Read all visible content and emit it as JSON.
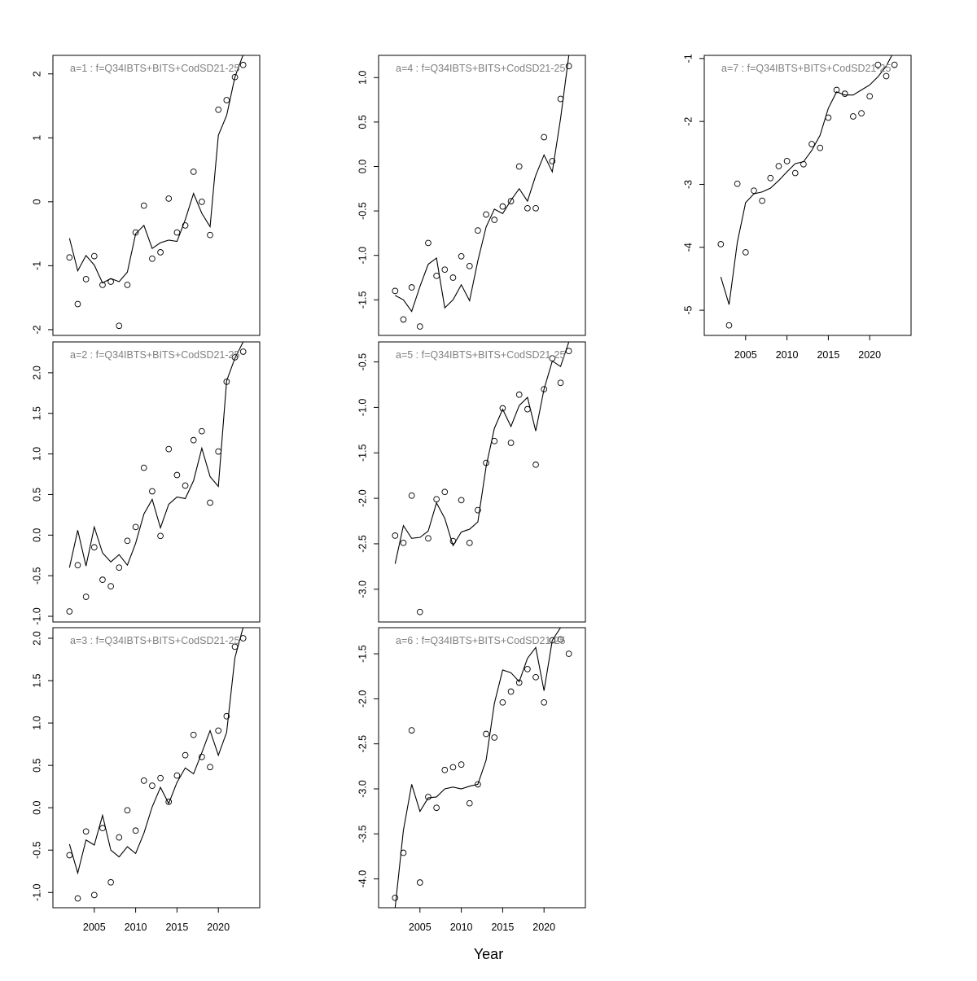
{
  "xlabel": "Year",
  "chart_data": [
    {
      "type": "scatter",
      "title": "a=1  :  f=Q34IBTS+BITS+CodSD21-25",
      "x": [
        2002,
        2003,
        2004,
        2005,
        2006,
        2007,
        2008,
        2009,
        2010,
        2011,
        2012,
        2013,
        2014,
        2015,
        2016,
        2017,
        2018,
        2019,
        2020,
        2021,
        2022,
        2023
      ],
      "series": [
        {
          "style": "points",
          "color": "#000000",
          "values": [
            -0.87,
            -1.6,
            -1.21,
            -0.85,
            -1.3,
            -1.25,
            -1.94,
            -1.3,
            -0.48,
            -0.06,
            -0.89,
            -0.79,
            0.05,
            -0.48,
            -0.37,
            0.47,
            0.0,
            -0.52,
            1.44,
            1.59,
            1.95,
            2.14
          ]
        },
        {
          "style": "line",
          "color": "#000000",
          "values": [
            -0.57,
            -1.08,
            -0.84,
            -0.99,
            -1.27,
            -1.2,
            -1.25,
            -1.1,
            -0.5,
            -0.37,
            -0.73,
            -0.64,
            -0.6,
            -0.62,
            -0.28,
            0.13,
            -0.18,
            -0.39,
            1.04,
            1.35,
            1.95,
            2.3
          ]
        }
      ],
      "xlim": [
        2000,
        2025
      ],
      "ylim": [
        -2.09,
        2.29
      ],
      "yticks": [
        -2,
        -1,
        0,
        1,
        2
      ]
    },
    {
      "type": "scatter",
      "title": "a=2  :  f=Q34IBTS+BITS+CodSD21-25",
      "x": [
        2002,
        2003,
        2004,
        2005,
        2006,
        2007,
        2008,
        2009,
        2010,
        2011,
        2012,
        2013,
        2014,
        2015,
        2016,
        2017,
        2018,
        2019,
        2020,
        2021,
        2022,
        2023
      ],
      "series": [
        {
          "style": "points",
          "color": "#000000",
          "values": [
            -0.94,
            -0.37,
            -0.76,
            -0.15,
            -0.55,
            -0.63,
            -0.4,
            -0.07,
            0.1,
            0.83,
            0.54,
            -0.01,
            1.06,
            0.74,
            0.61,
            1.17,
            1.28,
            0.4,
            1.03,
            1.89,
            2.19,
            2.26
          ]
        },
        {
          "style": "line",
          "color": "#000000",
          "values": [
            -0.4,
            0.06,
            -0.38,
            0.1,
            -0.22,
            -0.33,
            -0.24,
            -0.37,
            -0.1,
            0.26,
            0.44,
            0.09,
            0.38,
            0.47,
            0.45,
            0.67,
            1.07,
            0.72,
            0.6,
            1.9,
            2.18,
            2.38
          ]
        }
      ],
      "xlim": [
        2000,
        2025
      ],
      "ylim": [
        -1.07,
        2.38
      ],
      "yticks": [
        {
          "value": -1,
          "label": "-1.0"
        },
        -0.5,
        {
          "value": 0,
          "label": "0.0"
        },
        0.5,
        {
          "value": 1,
          "label": "1.0"
        },
        1.5,
        {
          "value": 2,
          "label": "2.0"
        }
      ]
    },
    {
      "type": "scatter",
      "title": "a=3  :  f=Q34IBTS+BITS+CodSD21-25",
      "x": [
        2002,
        2003,
        2004,
        2005,
        2006,
        2007,
        2008,
        2009,
        2010,
        2011,
        2012,
        2013,
        2014,
        2015,
        2016,
        2017,
        2018,
        2019,
        2020,
        2021,
        2022,
        2023
      ],
      "series": [
        {
          "style": "points",
          "color": "#000000",
          "values": [
            -0.56,
            -1.07,
            -0.28,
            -1.03,
            -0.24,
            -0.88,
            -0.35,
            -0.03,
            -0.27,
            0.32,
            0.26,
            0.35,
            0.07,
            0.38,
            0.62,
            0.86,
            0.6,
            0.48,
            0.91,
            1.08,
            1.9,
            2.0
          ]
        },
        {
          "style": "line",
          "color": "#000000",
          "values": [
            -0.43,
            -0.77,
            -0.38,
            -0.44,
            -0.09,
            -0.5,
            -0.58,
            -0.46,
            -0.54,
            -0.3,
            0.01,
            0.24,
            0.05,
            0.3,
            0.47,
            0.4,
            0.65,
            0.91,
            0.62,
            0.89,
            1.77,
            2.13
          ]
        }
      ],
      "xlim": [
        2000,
        2025
      ],
      "ylim": [
        -1.18,
        2.125
      ],
      "yticks": [
        {
          "value": -1,
          "label": "-1.0"
        },
        -0.5,
        {
          "value": 0,
          "label": "0.0"
        },
        0.5,
        {
          "value": 1,
          "label": "1.0"
        },
        1.5,
        {
          "value": 2,
          "label": "2.0"
        }
      ],
      "xticks": [
        2005,
        2010,
        2015,
        2020
      ]
    },
    {
      "type": "scatter",
      "title": "a=4  :  f=Q34IBTS+BITS+CodSD21-25",
      "x": [
        2002,
        2003,
        2004,
        2005,
        2006,
        2007,
        2008,
        2009,
        2010,
        2011,
        2012,
        2013,
        2014,
        2015,
        2016,
        2017,
        2018,
        2019,
        2020,
        2021,
        2022,
        2023
      ],
      "series": [
        {
          "style": "points",
          "color": "#000000",
          "values": [
            -1.4,
            -1.72,
            -1.36,
            -1.8,
            -0.86,
            -1.23,
            -1.16,
            -1.25,
            -1.01,
            -1.12,
            -0.72,
            -0.54,
            -0.6,
            -0.45,
            -0.39,
            0.0,
            -0.47,
            -0.47,
            0.33,
            0.06,
            0.76,
            1.13
          ]
        },
        {
          "style": "line",
          "color": "#000000",
          "values": [
            -1.45,
            -1.5,
            -1.63,
            -1.35,
            -1.1,
            -1.03,
            -1.59,
            -1.5,
            -1.33,
            -1.51,
            -1.06,
            -0.68,
            -0.48,
            -0.53,
            -0.38,
            -0.25,
            -0.39,
            -0.1,
            0.13,
            -0.06,
            0.54,
            1.25
          ]
        }
      ],
      "xlim": [
        2000,
        2025
      ],
      "ylim": [
        -1.9,
        1.25
      ],
      "yticks": [
        -1.5,
        {
          "value": -1,
          "label": "-1.0"
        },
        -0.5,
        {
          "value": 0,
          "label": "0.0"
        },
        0.5,
        {
          "value": 1,
          "label": "1.0"
        }
      ]
    },
    {
      "type": "scatter",
      "title": "a=5  :  f=Q34IBTS+BITS+CodSD21-25",
      "x": [
        2002,
        2003,
        2004,
        2005,
        2006,
        2007,
        2008,
        2009,
        2010,
        2011,
        2012,
        2013,
        2014,
        2015,
        2016,
        2017,
        2018,
        2019,
        2020,
        2021,
        2022,
        2023
      ],
      "series": [
        {
          "style": "points",
          "color": "#000000",
          "values": [
            -2.41,
            -2.49,
            -1.97,
            -3.25,
            -2.44,
            -2.01,
            -1.93,
            -2.47,
            -2.02,
            -2.49,
            -2.13,
            -1.61,
            -1.37,
            -1.01,
            -1.39,
            -0.86,
            -1.02,
            -1.63,
            -0.8,
            -0.46,
            -0.73,
            -0.38
          ]
        },
        {
          "style": "line",
          "color": "#000000",
          "values": [
            -2.72,
            -2.3,
            -2.44,
            -2.43,
            -2.36,
            -2.05,
            -2.22,
            -2.52,
            -2.37,
            -2.34,
            -2.26,
            -1.65,
            -1.23,
            -1.02,
            -1.21,
            -0.98,
            -0.89,
            -1.26,
            -0.8,
            -0.49,
            -0.55,
            -0.28
          ]
        }
      ],
      "xlim": [
        2000,
        2025
      ],
      "ylim": [
        -3.36,
        -0.28
      ],
      "yticks": [
        {
          "value": -3,
          "label": "-3.0"
        },
        -2.5,
        {
          "value": -2,
          "label": "-2.0"
        },
        -1.5,
        {
          "value": -1,
          "label": "-1.0"
        },
        -0.5
      ]
    },
    {
      "type": "scatter",
      "title": "a=6  :  f=Q34IBTS+BITS+CodSD21-25",
      "x": [
        2002,
        2003,
        2004,
        2005,
        2006,
        2007,
        2008,
        2009,
        2010,
        2011,
        2012,
        2013,
        2014,
        2015,
        2016,
        2017,
        2018,
        2019,
        2020,
        2021,
        2022,
        2023
      ],
      "series": [
        {
          "style": "points",
          "color": "#000000",
          "values": [
            -4.21,
            -3.71,
            -2.35,
            -4.04,
            -3.09,
            -3.21,
            -2.79,
            -2.76,
            -2.73,
            -3.16,
            -2.95,
            -2.39,
            -2.43,
            -2.04,
            -1.92,
            -1.82,
            -1.67,
            -1.76,
            -2.04,
            -1.35,
            -1.34,
            -1.5
          ]
        },
        {
          "style": "line",
          "color": "#000000",
          "values": [
            -4.32,
            -3.46,
            -2.95,
            -3.25,
            -3.1,
            -3.09,
            -3.0,
            -2.98,
            -3.0,
            -2.97,
            -2.95,
            -2.68,
            -2.05,
            -1.68,
            -1.71,
            -1.81,
            -1.55,
            -1.43,
            -1.91,
            -1.35,
            -1.21,
            -1.15
          ]
        }
      ],
      "xlim": [
        2000,
        2025
      ],
      "ylim": [
        -4.32,
        -1.21
      ],
      "yticks": [
        {
          "value": -4,
          "label": "-4.0"
        },
        -3.5,
        {
          "value": -3,
          "label": "-3.0"
        },
        -2.5,
        {
          "value": -2,
          "label": "-2.0"
        },
        -1.5
      ],
      "xticks": [
        2005,
        2010,
        2015,
        2020
      ]
    },
    {
      "type": "scatter",
      "title": "a=7  :  f=Q34IBTS+BITS+CodSD21-25",
      "x": [
        2002,
        2003,
        2004,
        2005,
        2006,
        2007,
        2008,
        2009,
        2010,
        2011,
        2012,
        2013,
        2014,
        2015,
        2016,
        2017,
        2018,
        2019,
        2020,
        2021,
        2022,
        2023
      ],
      "series": [
        {
          "style": "points",
          "color": "#000000",
          "values": [
            -3.95,
            -5.24,
            -2.99,
            -4.08,
            -3.1,
            -3.26,
            -2.9,
            -2.71,
            -2.63,
            -2.82,
            -2.68,
            -2.36,
            -2.42,
            -1.94,
            -1.5,
            -1.56,
            -1.92,
            -1.87,
            -1.6,
            -1.1,
            -1.28,
            -1.1
          ]
        },
        {
          "style": "line",
          "color": "#000000",
          "values": [
            -4.47,
            -4.91,
            -3.92,
            -3.29,
            -3.15,
            -3.12,
            -3.06,
            -2.94,
            -2.8,
            -2.67,
            -2.64,
            -2.46,
            -2.22,
            -1.79,
            -1.53,
            -1.58,
            -1.58,
            -1.5,
            -1.42,
            -1.29,
            -1.12,
            -0.87
          ]
        }
      ],
      "xlim": [
        2000,
        2025
      ],
      "ylim": [
        -5.4,
        -0.95
      ],
      "yticks": [
        -5,
        -4,
        -3,
        -2,
        -1
      ],
      "xticks": [
        2005,
        2010,
        2015,
        2020
      ]
    }
  ]
}
